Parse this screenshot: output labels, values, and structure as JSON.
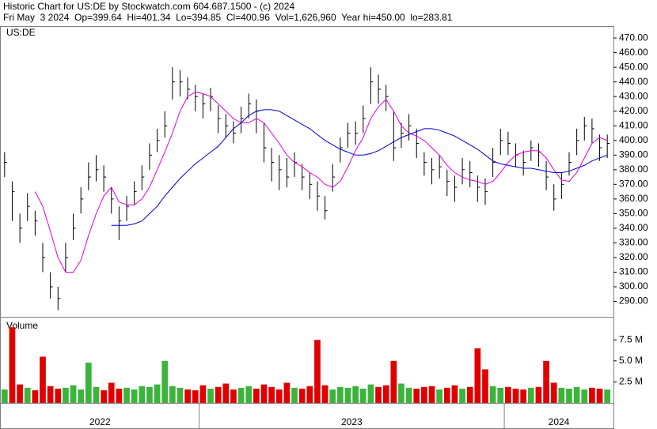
{
  "header": {
    "line1": "Historic Chart for US:DE by Stockwatch.com 604.687.1500 - (c) 2024",
    "line2": "Fri May  3 2024  Op=399.64  Hi=401.34  Lo=394.85  Cl=400.96  Vol=1,626,960  Year hi=450.00  lo=283.81"
  },
  "chart_data": [
    {
      "type": "ohlc",
      "title": "US:DE",
      "ylim": [
        279.5,
        477.6
      ],
      "grid": false,
      "color": "#000000",
      "yticks": [
        {
          "value": 290,
          "label": "290.00"
        },
        {
          "value": 300,
          "label": "300.00"
        },
        {
          "value": 310,
          "label": "310.00"
        },
        {
          "value": 320,
          "label": "320.00"
        },
        {
          "value": 330,
          "label": "330.00"
        },
        {
          "value": 340,
          "label": "340.00"
        },
        {
          "value": 350,
          "label": "350.00"
        },
        {
          "value": 360,
          "label": "360.00"
        },
        {
          "value": 370,
          "label": "370.00"
        },
        {
          "value": 380,
          "label": "380.00"
        },
        {
          "value": 390,
          "label": "390.00"
        },
        {
          "value": 400,
          "label": "400.00"
        },
        {
          "value": 410,
          "label": "410.00"
        },
        {
          "value": 420,
          "label": "420.00"
        },
        {
          "value": 430,
          "label": "430.00"
        },
        {
          "value": 440,
          "label": "440.00"
        },
        {
          "value": 450,
          "label": "450.00"
        },
        {
          "value": 460,
          "label": "460.00"
        },
        {
          "value": 470,
          "label": "470.00"
        }
      ],
      "high": [
        392,
        372,
        350,
        364,
        352,
        330,
        310,
        300,
        330,
        350,
        368,
        385,
        390,
        383,
        368,
        355,
        362,
        372,
        383,
        398,
        408,
        420,
        450,
        448,
        443,
        438,
        432,
        436,
        424,
        418,
        413,
        423,
        432,
        428,
        412,
        395,
        390,
        388,
        392,
        384,
        378,
        372,
        362,
        384,
        402,
        412,
        413,
        424,
        450,
        445,
        438,
        420,
        412,
        418,
        408,
        392,
        388,
        390,
        380,
        376,
        388,
        386,
        376,
        374,
        395,
        408,
        406,
        398,
        393,
        400,
        398,
        386,
        370,
        378,
        392,
        408,
        416,
        415,
        404,
        404
      ],
      "low": [
        375,
        345,
        330,
        345,
        335,
        310,
        292,
        284,
        310,
        332,
        350,
        366,
        372,
        365,
        350,
        332,
        345,
        356,
        366,
        380,
        392,
        402,
        428,
        430,
        428,
        420,
        415,
        420,
        405,
        402,
        398,
        405,
        415,
        405,
        385,
        372,
        366,
        368,
        375,
        366,
        360,
        352,
        346,
        365,
        385,
        395,
        397,
        405,
        425,
        425,
        420,
        386,
        395,
        400,
        388,
        376,
        370,
        374,
        362,
        358,
        370,
        368,
        358,
        356,
        375,
        390,
        390,
        382,
        376,
        386,
        382,
        366,
        352,
        360,
        376,
        390,
        400,
        398,
        386,
        388
      ],
      "close": [
        385,
        365,
        340,
        355,
        345,
        320,
        300,
        292,
        320,
        340,
        360,
        375,
        380,
        375,
        360,
        345,
        355,
        365,
        375,
        390,
        400,
        410,
        440,
        440,
        435,
        430,
        425,
        430,
        415,
        410,
        405,
        415,
        425,
        420,
        395,
        385,
        380,
        375,
        385,
        375,
        370,
        362,
        352,
        375,
        395,
        405,
        405,
        415,
        440,
        435,
        430,
        395,
        405,
        410,
        398,
        385,
        380,
        382,
        372,
        368,
        380,
        378,
        368,
        365,
        385,
        400,
        398,
        390,
        385,
        395,
        392,
        375,
        360,
        370,
        385,
        400,
        410,
        408,
        395,
        398
      ],
      "lines": [
        {
          "color": "#e000e0",
          "values": [
            null,
            null,
            null,
            null,
            365,
            355,
            338,
            320,
            310,
            310,
            318,
            335,
            350,
            362,
            368,
            358,
            356,
            356,
            360,
            368,
            380,
            392,
            405,
            420,
            430,
            433,
            432,
            430,
            425,
            420,
            415,
            412,
            412,
            415,
            412,
            405,
            398,
            390,
            385,
            382,
            378,
            375,
            370,
            368,
            372,
            382,
            393,
            402,
            415,
            423,
            428,
            420,
            410,
            405,
            403,
            400,
            395,
            390,
            383,
            378,
            375,
            373,
            372,
            370,
            372,
            378,
            385,
            390,
            392,
            393,
            393,
            388,
            380,
            373,
            372,
            378,
            388,
            398,
            402,
            400
          ]
        },
        {
          "color": "#0000cc",
          "values": [
            null,
            null,
            null,
            null,
            null,
            null,
            null,
            null,
            null,
            null,
            null,
            null,
            null,
            null,
            342,
            342,
            342,
            343,
            345,
            350,
            355,
            362,
            368,
            374,
            379,
            384,
            388,
            392,
            396,
            402,
            408,
            412,
            417,
            420,
            421,
            421,
            420,
            417,
            414,
            411,
            408,
            404,
            400,
            397,
            394,
            392,
            390,
            390,
            391,
            393,
            396,
            399,
            402,
            404,
            406,
            408,
            408,
            407,
            405,
            403,
            400,
            397,
            394,
            390,
            386,
            384,
            383,
            382,
            381,
            381,
            380,
            379,
            378,
            378,
            379,
            381,
            383,
            386,
            388,
            390
          ]
        }
      ]
    },
    {
      "type": "bar",
      "title": "Volume",
      "ylim": [
        0,
        10.15
      ],
      "up_color": "#3cb43c",
      "down_color": "#e00000",
      "yticks": [
        {
          "value": 2.5,
          "label": "2.5 M"
        },
        {
          "value": 5,
          "label": "5.0 M"
        },
        {
          "value": 7.5,
          "label": "7.5 M"
        }
      ],
      "categories": [
        "2022",
        null,
        null,
        null,
        null,
        null,
        null,
        null,
        null,
        null,
        null,
        null,
        null,
        null,
        null,
        null,
        null,
        null,
        null,
        null,
        null,
        null,
        null,
        null,
        null,
        null,
        "2023",
        null,
        null,
        null,
        null,
        null,
        null,
        null,
        null,
        null,
        null,
        null,
        null,
        null,
        null,
        null,
        null,
        null,
        null,
        null,
        null,
        null,
        null,
        null,
        null,
        null,
        null,
        null,
        null,
        null,
        null,
        null,
        null,
        null,
        null,
        null,
        null,
        null,
        null,
        null,
        "2024",
        null,
        null,
        null,
        null,
        null,
        null,
        null,
        null,
        null,
        null,
        null,
        null,
        null
      ],
      "values": [
        1.6,
        9.0,
        2.2,
        1.8,
        1.5,
        5.5,
        2.0,
        1.7,
        1.8,
        2.1,
        1.6,
        4.8,
        1.9,
        1.5,
        2.4,
        1.7,
        1.8,
        1.6,
        2.0,
        1.9,
        2.2,
        5.0,
        2.0,
        1.8,
        1.6,
        1.5,
        2.1,
        1.7,
        1.9,
        2.3,
        1.6,
        1.8,
        2.0,
        1.7,
        2.2,
        1.9,
        1.6,
        2.4,
        1.8,
        1.7,
        2.0,
        7.5,
        2.1,
        1.6,
        1.9,
        1.8,
        2.0,
        1.7,
        2.2,
        1.9,
        2.1,
        5.0,
        2.3,
        1.8,
        1.7,
        1.9,
        2.0,
        1.6,
        1.8,
        2.1,
        1.7,
        1.9,
        6.5,
        4.0,
        2.0,
        1.8,
        1.9,
        1.7,
        1.6,
        1.8,
        1.9,
        5.0,
        2.4,
        1.8,
        1.7,
        1.9,
        1.6,
        1.8,
        1.7,
        1.6
      ]
    }
  ]
}
